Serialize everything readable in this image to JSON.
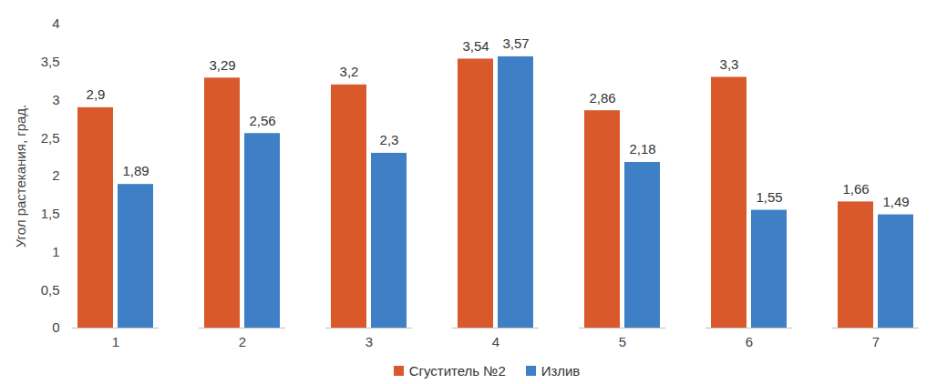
{
  "chart_data": {
    "type": "bar",
    "y_label": "Угол растекания, град.",
    "categories": [
      "1",
      "2",
      "3",
      "4",
      "5",
      "6",
      "7"
    ],
    "series": [
      {
        "name": "Сгуститель №2",
        "color": "#d9592b",
        "values": [
          2.9,
          3.29,
          3.2,
          3.54,
          2.86,
          3.3,
          1.66
        ],
        "value_labels": [
          "2,9",
          "3,29",
          "3,2",
          "3,54",
          "2,86",
          "3,3",
          "1,66"
        ]
      },
      {
        "name": "Излив",
        "color": "#3f7fc6",
        "values": [
          1.89,
          2.56,
          2.3,
          3.57,
          2.18,
          1.55,
          1.49
        ],
        "value_labels": [
          "1,89",
          "2,56",
          "2,3",
          "3,57",
          "2,18",
          "1,55",
          "1,49"
        ]
      }
    ],
    "ylim": [
      0,
      4
    ],
    "yticks": [
      0,
      {
        "value": 0.5,
        "label": "0,5"
      },
      1,
      {
        "value": 1.5,
        "label": "1,5"
      },
      2,
      {
        "value": 2.5,
        "label": "2,5"
      },
      3,
      {
        "value": 3.5,
        "label": "3,5"
      },
      4
    ],
    "grid": false,
    "legend": "bottom",
    "data_labels": true
  }
}
